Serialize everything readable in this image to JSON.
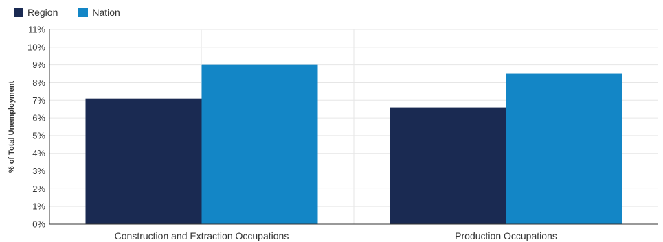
{
  "chart_data": {
    "type": "bar",
    "categories": [
      "Construction and Extraction Occupations",
      "Production Occupations"
    ],
    "series": [
      {
        "name": "Region",
        "values": [
          7.1,
          6.6
        ],
        "color": "#1a2a52"
      },
      {
        "name": "Nation",
        "values": [
          9.0,
          8.5
        ],
        "color": "#1386c6"
      }
    ],
    "ylabel": "% of Total Unemployment",
    "ylim": [
      0,
      11
    ],
    "yticks": [
      "0%",
      "1%",
      "2%",
      "3%",
      "4%",
      "5%",
      "6%",
      "7%",
      "8%",
      "9%",
      "10%",
      "11%"
    ],
    "grid": true,
    "legend_position": "top-left"
  }
}
